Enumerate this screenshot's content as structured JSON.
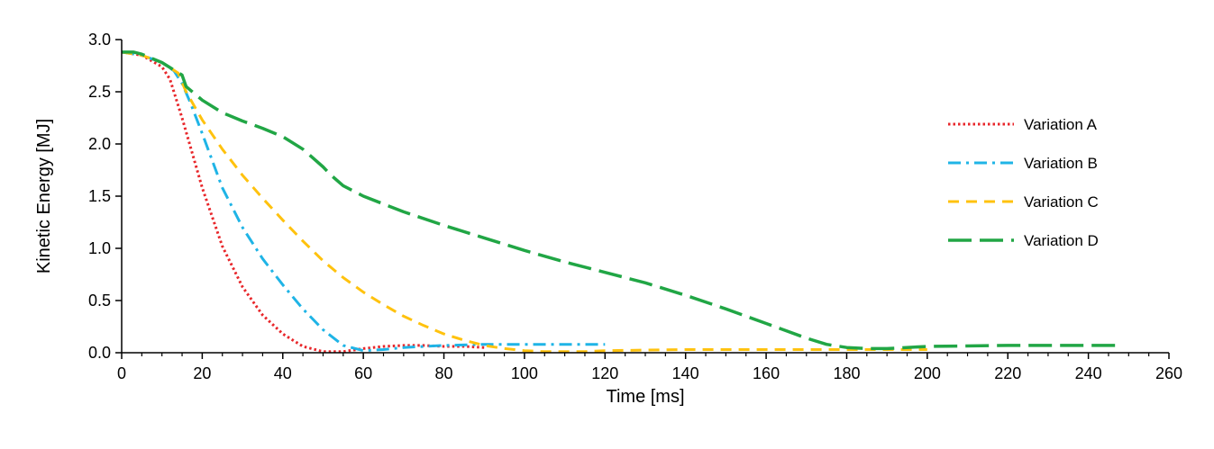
{
  "chart_data": {
    "type": "line",
    "title": "",
    "xlabel": "Time [ms]",
    "ylabel": "Kinetic Energy [MJ]",
    "xlim": [
      0,
      260
    ],
    "ylim": [
      0,
      3.0
    ],
    "xticks": [
      "0",
      "20",
      "40",
      "60",
      "80",
      "100",
      "120",
      "140",
      "160",
      "180",
      "200",
      "220",
      "240",
      "260"
    ],
    "yticks": [
      "0.0",
      "0.5",
      "1.0",
      "1.5",
      "2.0",
      "2.5",
      "3.0"
    ],
    "grid": false,
    "legend_position": "right",
    "series": [
      {
        "name": "Variation A",
        "color": "#e8262a",
        "dash": "dotted",
        "x": [
          0,
          5,
          10,
          12,
          15,
          18,
          20,
          25,
          30,
          35,
          40,
          45,
          50,
          55,
          60,
          65,
          70,
          75,
          80,
          85,
          90
        ],
        "y": [
          2.88,
          2.85,
          2.74,
          2.62,
          2.25,
          1.85,
          1.58,
          1.02,
          0.63,
          0.36,
          0.18,
          0.06,
          0.01,
          0.01,
          0.04,
          0.06,
          0.07,
          0.07,
          0.06,
          0.06,
          0.05
        ]
      },
      {
        "name": "Variation B",
        "color": "#1fb4e6",
        "dash": "dashdot",
        "x": [
          0,
          5,
          10,
          13,
          15,
          17,
          20,
          25,
          30,
          35,
          40,
          45,
          50,
          55,
          60,
          65,
          70,
          80,
          90,
          100,
          110,
          120
        ],
        "y": [
          2.88,
          2.85,
          2.78,
          2.7,
          2.58,
          2.4,
          2.1,
          1.58,
          1.2,
          0.9,
          0.65,
          0.42,
          0.22,
          0.07,
          0.02,
          0.03,
          0.05,
          0.07,
          0.08,
          0.08,
          0.08,
          0.08
        ]
      },
      {
        "name": "Variation C",
        "color": "#ffc20e",
        "dash": "dashed",
        "x": [
          0,
          5,
          10,
          14,
          16,
          20,
          25,
          30,
          35,
          40,
          45,
          50,
          55,
          60,
          65,
          70,
          75,
          80,
          85,
          90,
          95,
          100,
          105,
          110,
          115,
          120,
          140,
          160,
          180,
          200
        ],
        "y": [
          2.88,
          2.85,
          2.78,
          2.68,
          2.5,
          2.23,
          1.95,
          1.7,
          1.48,
          1.27,
          1.07,
          0.88,
          0.72,
          0.58,
          0.46,
          0.35,
          0.26,
          0.18,
          0.12,
          0.07,
          0.04,
          0.02,
          0.01,
          0.01,
          0.01,
          0.02,
          0.03,
          0.03,
          0.03,
          0.03
        ]
      },
      {
        "name": "Variation D",
        "color": "#21a645",
        "dash": "longdash",
        "x": [
          0,
          3,
          5,
          10,
          15,
          16,
          20,
          25,
          30,
          35,
          40,
          45,
          50,
          52,
          55,
          60,
          70,
          80,
          90,
          100,
          110,
          120,
          130,
          140,
          150,
          160,
          170,
          175,
          180,
          185,
          190,
          200,
          220,
          240,
          248
        ],
        "y": [
          2.88,
          2.88,
          2.86,
          2.78,
          2.66,
          2.55,
          2.42,
          2.3,
          2.22,
          2.15,
          2.07,
          1.95,
          1.78,
          1.7,
          1.6,
          1.5,
          1.35,
          1.22,
          1.1,
          0.98,
          0.87,
          0.77,
          0.67,
          0.55,
          0.42,
          0.28,
          0.14,
          0.08,
          0.05,
          0.04,
          0.04,
          0.06,
          0.07,
          0.07,
          0.07
        ]
      }
    ]
  }
}
